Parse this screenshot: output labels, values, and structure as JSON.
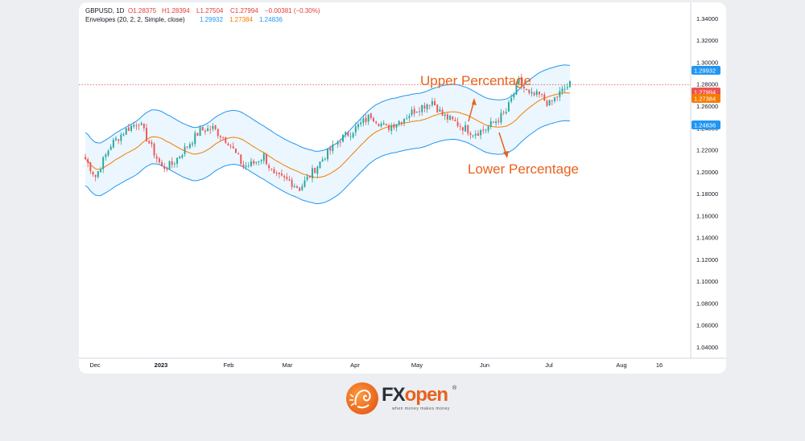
{
  "header": {
    "symbol": "GBPUSD, 1D",
    "ohlc_open": "O1.28375",
    "ohlc_high": "H1.28394",
    "ohlc_low": "L1.27504",
    "ohlc_close": "C1.27994",
    "change": "−0.00381 (−0.30%)",
    "indicator_label": "Envelopes (20, 2, 2, Simple, close)",
    "ind_upper": "1.29932",
    "ind_mid": "1.27384",
    "ind_lower": "1.24836"
  },
  "annotations": {
    "upper": "Upper Percentage",
    "lower": "Lower Percentage"
  },
  "price_tags": {
    "upper": "1.29932",
    "close": "1.27994",
    "mid": "1.27384",
    "lower": "1.24836"
  },
  "colors": {
    "up": "#26a69a",
    "down": "#ef5350",
    "band": "#2196f3",
    "band_fill": "#e3f2fd",
    "mid": "#f57c00",
    "annotation": "#e8621c",
    "close_line": "#ef5350"
  },
  "logo": {
    "brand_fx": "FX",
    "brand_open": "open",
    "registered": "®",
    "tagline": "when money makes money"
  },
  "chart_data": {
    "type": "candlestick",
    "title": "GBPUSD, 1D",
    "y_ticks": [
      "1.04000",
      "1.06000",
      "1.08000",
      "1.10000",
      "1.12000",
      "1.14000",
      "1.16000",
      "1.18000",
      "1.20000",
      "1.22000",
      "1.24000",
      "1.26000",
      "1.28000",
      "1.30000",
      "1.32000",
      "1.34000"
    ],
    "x_ticks": [
      "Dec",
      "2023",
      "Feb",
      "Mar",
      "Apr",
      "May",
      "Jun",
      "Jul",
      "Aug",
      "16"
    ],
    "ylim": [
      1.03,
      1.355
    ],
    "series": [
      {
        "name": "Envelopes upper",
        "x": [
          "Dec",
          "2023",
          "Feb",
          "Mar",
          "Apr",
          "May",
          "Jun",
          "Jul"
        ],
        "values": [
          1.234,
          1.244,
          1.246,
          1.212,
          1.252,
          1.266,
          1.268,
          1.298
        ]
      },
      {
        "name": "Envelopes basis",
        "x": [
          "Dec",
          "2023",
          "Feb",
          "Mar",
          "Apr",
          "May",
          "Jun",
          "Jul"
        ],
        "values": [
          1.209,
          1.219,
          1.221,
          1.188,
          1.227,
          1.241,
          1.243,
          1.273
        ]
      },
      {
        "name": "Envelopes lower",
        "x": [
          "Dec",
          "2023",
          "Feb",
          "Mar",
          "Apr",
          "May",
          "Jun",
          "Jul"
        ],
        "values": [
          1.185,
          1.195,
          1.197,
          1.164,
          1.203,
          1.217,
          1.219,
          1.248
        ]
      }
    ],
    "last_values": {
      "upper": 1.29932,
      "close": 1.27994,
      "basis": 1.27384,
      "lower": 1.24836
    }
  }
}
